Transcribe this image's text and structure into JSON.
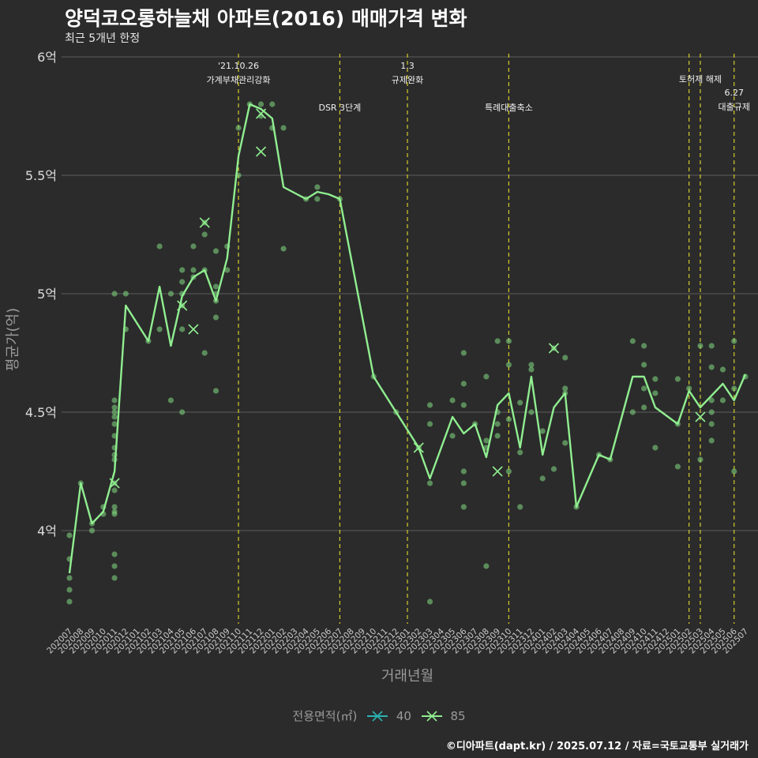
{
  "title": "양덕코오롱하늘채 아파트(2016) 매매가격 변화",
  "subtitle": "최근 5개년 한정",
  "caption": "©디아파트(dapt.kr) / 2025.07.12 / 자료=국토교통부 실거래가",
  "colors": {
    "background": "#2b2b2b",
    "grid": "#5c5c5c",
    "line_85": "#90ee90",
    "line_40": "#2bb3b3",
    "event_line": "#d4cc2a",
    "point": "#7ccd7c"
  },
  "chart_data": {
    "type": "line",
    "xlabel": "거래년월",
    "ylabel": "평균가(억)",
    "ylim": [
      3.6,
      6.0
    ],
    "y_ticks": [
      {
        "value": 4.0,
        "label": "4억"
      },
      {
        "value": 4.5,
        "label": "4.5억"
      },
      {
        "value": 5.0,
        "label": "5억"
      },
      {
        "value": 5.5,
        "label": "5.5억"
      },
      {
        "value": 6.0,
        "label": "6억"
      }
    ],
    "x": [
      "202007",
      "202008",
      "202009",
      "202010",
      "202011",
      "202012",
      "202101",
      "202102",
      "202103",
      "202104",
      "202105",
      "202106",
      "202107",
      "202108",
      "202109",
      "202110",
      "202111",
      "202112",
      "202201",
      "202202",
      "202203",
      "202204",
      "202205",
      "202206",
      "202207",
      "202208",
      "202209",
      "202210",
      "202211",
      "202212",
      "202301",
      "202302",
      "202303",
      "202304",
      "202305",
      "202306",
      "202307",
      "202308",
      "202309",
      "202310",
      "202311",
      "202312",
      "202401",
      "202402",
      "202403",
      "202404",
      "202405",
      "202406",
      "202407",
      "202408",
      "202409",
      "202410",
      "202411",
      "202412",
      "202501",
      "202502",
      "202503",
      "202504",
      "202505",
      "202506",
      "202507"
    ],
    "legend_title": "전용면적(㎡)",
    "legend": [
      "40",
      "85"
    ],
    "legend_position": "bottom",
    "series": [
      {
        "name": "85",
        "x": [
          "202007",
          "202008",
          "202009",
          "202010",
          "202011",
          "202012",
          "202102",
          "202103",
          "202104",
          "202105",
          "202106",
          "202107",
          "202108",
          "202109",
          "202110",
          "202111",
          "202112",
          "202201",
          "202202",
          "202204",
          "202205",
          "202206",
          "202207",
          "202210",
          "202212",
          "202302",
          "202303",
          "202305",
          "202306",
          "202307",
          "202308",
          "202309",
          "202310",
          "202311",
          "202312",
          "202401",
          "202402",
          "202403",
          "202404",
          "202406",
          "202407",
          "202409",
          "202410",
          "202411",
          "202501",
          "202502",
          "202503",
          "202505",
          "202506",
          "202507"
        ],
        "values": [
          3.82,
          4.2,
          4.03,
          4.08,
          4.25,
          4.95,
          4.8,
          5.03,
          4.78,
          4.99,
          5.07,
          5.1,
          4.97,
          5.15,
          5.58,
          5.8,
          5.78,
          5.74,
          5.45,
          5.4,
          5.43,
          5.42,
          5.4,
          4.65,
          4.5,
          4.35,
          4.22,
          4.48,
          4.41,
          4.45,
          4.31,
          4.53,
          4.58,
          4.35,
          4.65,
          4.32,
          4.52,
          4.58,
          4.1,
          4.32,
          4.3,
          4.65,
          4.65,
          4.52,
          4.45,
          4.59,
          4.52,
          4.62,
          4.55,
          4.66
        ]
      },
      {
        "name": "40",
        "x": [],
        "values": []
      }
    ],
    "cross_markers": [
      {
        "x": "202011",
        "y": 4.2
      },
      {
        "x": "202105",
        "y": 4.95
      },
      {
        "x": "202106",
        "y": 4.85
      },
      {
        "x": "202107",
        "y": 5.3
      },
      {
        "x": "202112",
        "y": 5.6
      },
      {
        "x": "202112",
        "y": 5.76
      },
      {
        "x": "202302",
        "y": 4.35
      },
      {
        "x": "202309",
        "y": 4.25
      },
      {
        "x": "202402",
        "y": 4.77
      },
      {
        "x": "202503",
        "y": 4.48
      }
    ],
    "scatter": [
      {
        "x": "202007",
        "y": 3.98
      },
      {
        "x": "202007",
        "y": 3.88
      },
      {
        "x": "202007",
        "y": 3.8
      },
      {
        "x": "202007",
        "y": 3.75
      },
      {
        "x": "202007",
        "y": 3.7
      },
      {
        "x": "202008",
        "y": 4.2
      },
      {
        "x": "202009",
        "y": 4.0
      },
      {
        "x": "202009",
        "y": 4.03
      },
      {
        "x": "202010",
        "y": 4.07
      },
      {
        "x": "202010",
        "y": 4.1
      },
      {
        "x": "202011",
        "y": 5.0
      },
      {
        "x": "202011",
        "y": 4.55
      },
      {
        "x": "202011",
        "y": 4.52
      },
      {
        "x": "202011",
        "y": 4.5
      },
      {
        "x": "202011",
        "y": 4.48
      },
      {
        "x": "202011",
        "y": 4.45
      },
      {
        "x": "202011",
        "y": 4.4
      },
      {
        "x": "202011",
        "y": 4.35
      },
      {
        "x": "202011",
        "y": 4.32
      },
      {
        "x": "202011",
        "y": 4.3
      },
      {
        "x": "202011",
        "y": 4.2
      },
      {
        "x": "202011",
        "y": 4.17
      },
      {
        "x": "202011",
        "y": 4.1
      },
      {
        "x": "202011",
        "y": 4.08
      },
      {
        "x": "202011",
        "y": 4.07
      },
      {
        "x": "202011",
        "y": 3.9
      },
      {
        "x": "202011",
        "y": 3.85
      },
      {
        "x": "202011",
        "y": 3.8
      },
      {
        "x": "202012",
        "y": 5.0
      },
      {
        "x": "202012",
        "y": 4.85
      },
      {
        "x": "202102",
        "y": 4.8
      },
      {
        "x": "202103",
        "y": 5.2
      },
      {
        "x": "202103",
        "y": 4.85
      },
      {
        "x": "202104",
        "y": 5.0
      },
      {
        "x": "202104",
        "y": 4.55
      },
      {
        "x": "202105",
        "y": 5.1
      },
      {
        "x": "202105",
        "y": 5.05
      },
      {
        "x": "202105",
        "y": 5.0
      },
      {
        "x": "202105",
        "y": 4.95
      },
      {
        "x": "202105",
        "y": 4.85
      },
      {
        "x": "202105",
        "y": 4.5
      },
      {
        "x": "202106",
        "y": 5.2
      },
      {
        "x": "202106",
        "y": 5.1
      },
      {
        "x": "202106",
        "y": 5.07
      },
      {
        "x": "202107",
        "y": 5.3
      },
      {
        "x": "202107",
        "y": 5.25
      },
      {
        "x": "202107",
        "y": 5.1
      },
      {
        "x": "202107",
        "y": 4.75
      },
      {
        "x": "202108",
        "y": 5.18
      },
      {
        "x": "202108",
        "y": 5.03
      },
      {
        "x": "202108",
        "y": 5.0
      },
      {
        "x": "202108",
        "y": 4.97
      },
      {
        "x": "202108",
        "y": 4.9
      },
      {
        "x": "202108",
        "y": 4.59
      },
      {
        "x": "202109",
        "y": 5.2
      },
      {
        "x": "202109",
        "y": 5.1
      },
      {
        "x": "202110",
        "y": 5.7
      },
      {
        "x": "202110",
        "y": 5.5
      },
      {
        "x": "202111",
        "y": 5.8
      },
      {
        "x": "202112",
        "y": 5.8
      },
      {
        "x": "202112",
        "y": 5.75
      },
      {
        "x": "202201",
        "y": 5.8
      },
      {
        "x": "202201",
        "y": 5.7
      },
      {
        "x": "202202",
        "y": 5.7
      },
      {
        "x": "202202",
        "y": 5.19
      },
      {
        "x": "202204",
        "y": 5.4
      },
      {
        "x": "202205",
        "y": 5.45
      },
      {
        "x": "202205",
        "y": 5.4
      },
      {
        "x": "202207",
        "y": 5.4
      },
      {
        "x": "202210",
        "y": 4.65
      },
      {
        "x": "202212",
        "y": 4.5
      },
      {
        "x": "202302",
        "y": 4.35
      },
      {
        "x": "202303",
        "y": 4.53
      },
      {
        "x": "202303",
        "y": 4.45
      },
      {
        "x": "202303",
        "y": 4.2
      },
      {
        "x": "202303",
        "y": 3.7
      },
      {
        "x": "202305",
        "y": 4.55
      },
      {
        "x": "202305",
        "y": 4.4
      },
      {
        "x": "202306",
        "y": 4.75
      },
      {
        "x": "202306",
        "y": 4.62
      },
      {
        "x": "202306",
        "y": 4.53
      },
      {
        "x": "202306",
        "y": 4.25
      },
      {
        "x": "202306",
        "y": 4.2
      },
      {
        "x": "202306",
        "y": 4.1
      },
      {
        "x": "202307",
        "y": 4.45
      },
      {
        "x": "202308",
        "y": 4.65
      },
      {
        "x": "202308",
        "y": 4.38
      },
      {
        "x": "202308",
        "y": 4.35
      },
      {
        "x": "202308",
        "y": 3.85
      },
      {
        "x": "202309",
        "y": 4.8
      },
      {
        "x": "202309",
        "y": 4.5
      },
      {
        "x": "202309",
        "y": 4.45
      },
      {
        "x": "202309",
        "y": 4.4
      },
      {
        "x": "202310",
        "y": 4.8
      },
      {
        "x": "202310",
        "y": 4.7
      },
      {
        "x": "202310",
        "y": 4.47
      },
      {
        "x": "202310",
        "y": 4.25
      },
      {
        "x": "202311",
        "y": 4.54
      },
      {
        "x": "202311",
        "y": 4.33
      },
      {
        "x": "202311",
        "y": 4.1
      },
      {
        "x": "202312",
        "y": 4.7
      },
      {
        "x": "202312",
        "y": 4.68
      },
      {
        "x": "202312",
        "y": 4.5
      },
      {
        "x": "202401",
        "y": 4.42
      },
      {
        "x": "202401",
        "y": 4.22
      },
      {
        "x": "202402",
        "y": 4.77
      },
      {
        "x": "202402",
        "y": 4.26
      },
      {
        "x": "202403",
        "y": 4.73
      },
      {
        "x": "202403",
        "y": 4.6
      },
      {
        "x": "202403",
        "y": 4.58
      },
      {
        "x": "202403",
        "y": 4.37
      },
      {
        "x": "202404",
        "y": 4.1
      },
      {
        "x": "202406",
        "y": 4.32
      },
      {
        "x": "202407",
        "y": 4.3
      },
      {
        "x": "202409",
        "y": 4.8
      },
      {
        "x": "202409",
        "y": 4.5
      },
      {
        "x": "202410",
        "y": 4.78
      },
      {
        "x": "202410",
        "y": 4.7
      },
      {
        "x": "202410",
        "y": 4.6
      },
      {
        "x": "202410",
        "y": 4.52
      },
      {
        "x": "202411",
        "y": 4.64
      },
      {
        "x": "202411",
        "y": 4.58
      },
      {
        "x": "202411",
        "y": 4.35
      },
      {
        "x": "202501",
        "y": 4.64
      },
      {
        "x": "202501",
        "y": 4.45
      },
      {
        "x": "202501",
        "y": 4.27
      },
      {
        "x": "202502",
        "y": 4.6
      },
      {
        "x": "202503",
        "y": 4.78
      },
      {
        "x": "202503",
        "y": 4.3
      },
      {
        "x": "202504",
        "y": 4.78
      },
      {
        "x": "202504",
        "y": 4.69
      },
      {
        "x": "202504",
        "y": 4.55
      },
      {
        "x": "202504",
        "y": 4.5
      },
      {
        "x": "202504",
        "y": 4.45
      },
      {
        "x": "202504",
        "y": 4.38
      },
      {
        "x": "202505",
        "y": 4.68
      },
      {
        "x": "202505",
        "y": 4.55
      },
      {
        "x": "202506",
        "y": 4.8
      },
      {
        "x": "202506",
        "y": 4.6
      },
      {
        "x": "202506",
        "y": 4.25
      },
      {
        "x": "202507",
        "y": 4.65
      }
    ],
    "events": [
      {
        "x": "202110",
        "label": "'21.10.26\n가계부채관리강화",
        "row": 0
      },
      {
        "x": "202207",
        "label": "DSR 3단계",
        "row": 1
      },
      {
        "x": "202301",
        "label": "1.3\n규제완화",
        "row": 0
      },
      {
        "x": "202310",
        "label": "특례대출축소",
        "row": 1
      },
      {
        "x": "202502",
        "label": "",
        "row": 0
      },
      {
        "x": "202503",
        "label": "토허제 해제",
        "row": 0
      },
      {
        "x": "202506",
        "label": "6.27\n대출규제",
        "row": 2
      }
    ],
    "grid": true
  }
}
